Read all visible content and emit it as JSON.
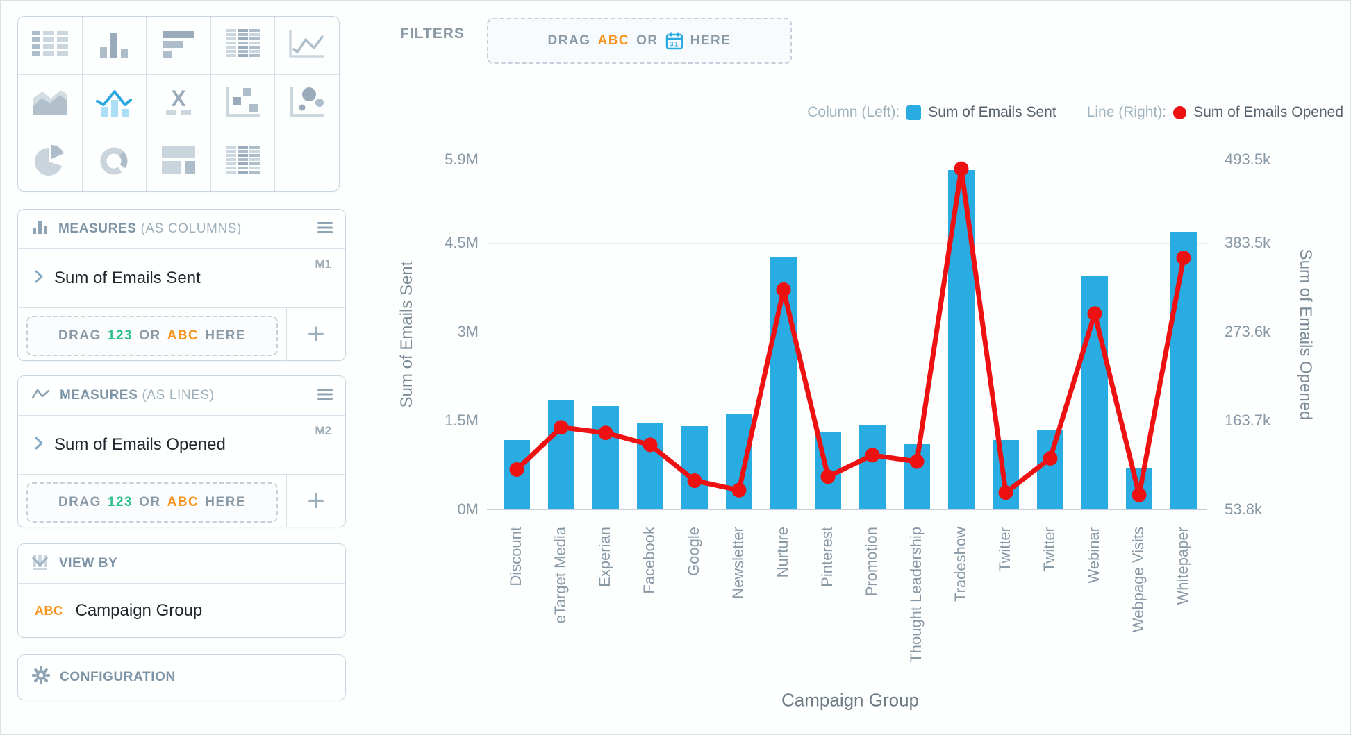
{
  "colors": {
    "bar_blue": "#29ACE2",
    "line_red": "#EE1111",
    "abc_orange": "#F7941D",
    "num_green": "#2FBF8F",
    "calendar_blue": "#29ABE2",
    "text_gray": "#8A99A6",
    "panel_border": "#C9D6E1"
  },
  "sidebar": {
    "chart_types": [
      {
        "name": "table-icon",
        "selected": false
      },
      {
        "name": "column-chart-icon",
        "selected": false
      },
      {
        "name": "bar-chart-icon",
        "selected": false
      },
      {
        "name": "pivot-table-icon",
        "selected": false
      },
      {
        "name": "line-chart-icon",
        "selected": false
      },
      {
        "name": "area-chart-icon",
        "selected": false
      },
      {
        "name": "combo-chart-icon",
        "selected": true
      },
      {
        "name": "x-chart-icon",
        "selected": false
      },
      {
        "name": "scatter-plot-icon",
        "selected": false
      },
      {
        "name": "bubble-chart-icon",
        "selected": false
      },
      {
        "name": "pie-chart-icon",
        "selected": false
      },
      {
        "name": "donut-chart-icon",
        "selected": false
      },
      {
        "name": "summary-tile-icon",
        "selected": false
      },
      {
        "name": "matrix-table-icon",
        "selected": false
      },
      {
        "name": "empty",
        "selected": false
      }
    ],
    "measures_columns": {
      "title": "MEASURES",
      "subtitle": "(AS COLUMNS)",
      "measure": "Sum of Emails Sent",
      "badge": "M1",
      "drop_zone": {
        "prefix": "DRAG",
        "numeric_hint": "123",
        "middle": "OR",
        "text_hint": "ABC",
        "suffix": "HERE"
      },
      "add_label": "+"
    },
    "measures_lines": {
      "title": "MEASURES",
      "subtitle": "(AS LINES)",
      "measure": "Sum of Emails Opened",
      "badge": "M2",
      "drop_zone": {
        "prefix": "DRAG",
        "numeric_hint": "123",
        "middle": "OR",
        "text_hint": "ABC",
        "suffix": "HERE"
      },
      "add_label": "+"
    },
    "view_by": {
      "title": "VIEW BY",
      "field_type": "ABC",
      "field": "Campaign Group"
    },
    "configuration": {
      "title": "CONFIGURATION"
    }
  },
  "filters": {
    "label": "FILTERS",
    "drop_zone": {
      "prefix": "DRAG",
      "text_hint": "ABC",
      "middle": "OR",
      "calendar_icon": "calendar-icon",
      "suffix": "HERE"
    }
  },
  "legend": {
    "column_label": "Column (Left):",
    "column_series": "Sum of Emails Sent",
    "line_label": "Line (Right):",
    "line_series": "Sum of Emails Opened"
  },
  "chart_data": {
    "type": "bar",
    "subtype": "combo-dual-axis (columns + line)",
    "categories": [
      "Discount",
      "eTarget Media",
      "Experian",
      "Facebook",
      "Google",
      "Newsletter",
      "Nurture",
      "Pinterest",
      "Promotion",
      "Thought Leadership",
      "Tradeshow",
      "Twitter",
      "Twitter",
      "Webinar",
      "Webpage Visits",
      "Whitepaper"
    ],
    "series": [
      {
        "name": "Sum of Emails Sent",
        "type": "column",
        "axis": "left",
        "color": "#29ACE2",
        "values_M": [
          1.17,
          1.85,
          1.74,
          1.45,
          1.4,
          1.62,
          4.25,
          1.3,
          1.43,
          1.1,
          5.72,
          1.17,
          1.35,
          3.95,
          0.7,
          4.68
        ]
      },
      {
        "name": "Sum of Emails Opened",
        "type": "line",
        "axis": "right",
        "color": "#EE1111",
        "values_k": [
          104,
          157,
          150,
          135,
          90,
          78,
          330,
          95,
          122,
          114,
          482,
          75,
          118,
          300,
          72,
          370
        ]
      }
    ],
    "left_axis": {
      "title": "Sum of Emails Sent",
      "ticks": [
        "5.9M",
        "4.5M",
        "3M",
        "1.5M",
        "0M"
      ],
      "tick_values_M": [
        5.9,
        4.5,
        3,
        1.5,
        0
      ],
      "max_M": 5.9
    },
    "right_axis": {
      "title": "Sum of Emails Opened",
      "ticks": [
        "493.5k",
        "383.5k",
        "273.6k",
        "163.7k",
        "53.8k"
      ],
      "tick_values_k": [
        493.5,
        383.5,
        273.6,
        163.7,
        53.8
      ],
      "min_k": 53.8,
      "max_k": 493.5
    },
    "x_axis": {
      "title": "Campaign Group"
    },
    "grid": true,
    "legend_position": "top-right"
  }
}
